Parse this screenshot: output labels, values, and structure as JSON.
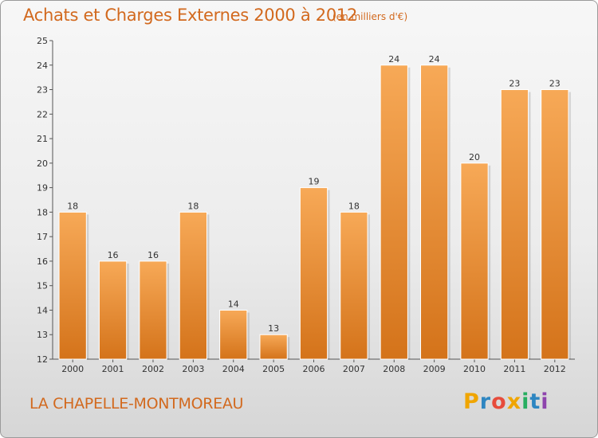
{
  "header": {
    "title": "Achats et Charges Externes 2000 à 2012",
    "subtitle": "(en milliers d'€)"
  },
  "footer": {
    "commune": "LA CHAPELLE-MONTMOREAU",
    "logo_letters": [
      "P",
      "r",
      "o",
      "x",
      "i",
      "t",
      "i"
    ],
    "logo_colors": [
      "#f0a500",
      "#2e86c1",
      "#e74c3c",
      "#f0a500",
      "#27ae60",
      "#2e86c1",
      "#8e44ad"
    ]
  },
  "chart_data": {
    "type": "bar",
    "title": "Achats et Charges Externes 2000 à 2012",
    "subtitle": "(en milliers d'€)",
    "categories": [
      "2000",
      "2001",
      "2002",
      "2003",
      "2004",
      "2005",
      "2006",
      "2007",
      "2008",
      "2009",
      "2010",
      "2011",
      "2012"
    ],
    "values": [
      18,
      16,
      16,
      18,
      14,
      13,
      19,
      18,
      24,
      24,
      20,
      23,
      23
    ],
    "ylim": [
      12,
      25
    ],
    "yticks": [
      12,
      13,
      14,
      15,
      16,
      17,
      18,
      19,
      20,
      21,
      22,
      23,
      24,
      25
    ],
    "grid": false,
    "bar_color": "#f5a54f",
    "bar_color_dark": "#d97a1a"
  }
}
